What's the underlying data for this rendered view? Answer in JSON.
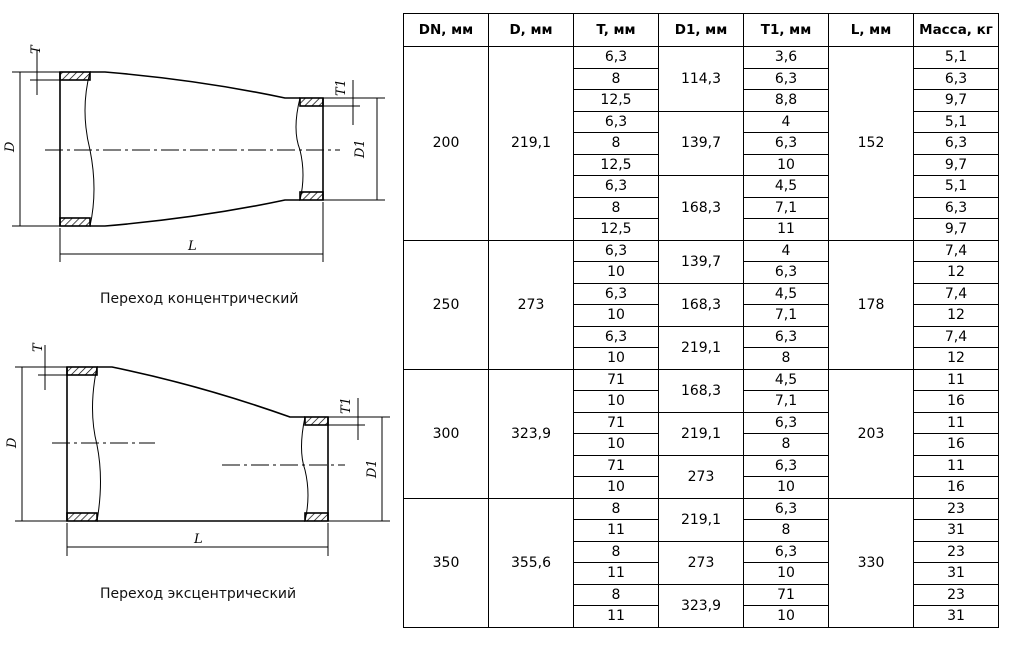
{
  "drawings": {
    "concentric": {
      "caption": "Переход концентрический",
      "labels": {
        "T": "T",
        "T1": "T1",
        "D": "D",
        "D1": "D1",
        "L": "L"
      }
    },
    "eccentric": {
      "caption": "Переход эксцентрический",
      "labels": {
        "T": "T",
        "T1": "T1",
        "D": "D",
        "D1": "D1",
        "L": "L"
      }
    }
  },
  "table": {
    "headers": [
      "DN, мм",
      "D, мм",
      "T, мм",
      "D1, мм",
      "T1, мм",
      "L, мм",
      "Масса, кг"
    ],
    "groups": [
      {
        "dn": "200",
        "d": "219,1",
        "l": "152",
        "subs": [
          {
            "d1": "114,3",
            "rows": [
              {
                "t": "6,3",
                "t1": "3,6",
                "mass": "5,1"
              },
              {
                "t": "8",
                "t1": "6,3",
                "mass": "6,3"
              },
              {
                "t": "12,5",
                "t1": "8,8",
                "mass": "9,7"
              }
            ]
          },
          {
            "d1": "139,7",
            "rows": [
              {
                "t": "6,3",
                "t1": "4",
                "mass": "5,1"
              },
              {
                "t": "8",
                "t1": "6,3",
                "mass": "6,3"
              },
              {
                "t": "12,5",
                "t1": "10",
                "mass": "9,7"
              }
            ]
          },
          {
            "d1": "168,3",
            "rows": [
              {
                "t": "6,3",
                "t1": "4,5",
                "mass": "5,1"
              },
              {
                "t": "8",
                "t1": "7,1",
                "mass": "6,3"
              },
              {
                "t": "12,5",
                "t1": "11",
                "mass": "9,7"
              }
            ]
          }
        ]
      },
      {
        "dn": "250",
        "d": "273",
        "l": "178",
        "subs": [
          {
            "d1": "139,7",
            "rows": [
              {
                "t": "6,3",
                "t1": "4",
                "mass": "7,4"
              },
              {
                "t": "10",
                "t1": "6,3",
                "mass": "12"
              }
            ]
          },
          {
            "d1": "168,3",
            "rows": [
              {
                "t": "6,3",
                "t1": "4,5",
                "mass": "7,4"
              },
              {
                "t": "10",
                "t1": "7,1",
                "mass": "12"
              }
            ]
          },
          {
            "d1": "219,1",
            "rows": [
              {
                "t": "6,3",
                "t1": "6,3",
                "mass": "7,4"
              },
              {
                "t": "10",
                "t1": "8",
                "mass": "12"
              }
            ]
          }
        ]
      },
      {
        "dn": "300",
        "d": "323,9",
        "l": "203",
        "subs": [
          {
            "d1": "168,3",
            "rows": [
              {
                "t": "71",
                "t1": "4,5",
                "mass": "11"
              },
              {
                "t": "10",
                "t1": "7,1",
                "mass": "16"
              }
            ]
          },
          {
            "d1": "219,1",
            "rows": [
              {
                "t": "71",
                "t1": "6,3",
                "mass": "11"
              },
              {
                "t": "10",
                "t1": "8",
                "mass": "16"
              }
            ]
          },
          {
            "d1": "273",
            "rows": [
              {
                "t": "71",
                "t1": "6,3",
                "mass": "11"
              },
              {
                "t": "10",
                "t1": "10",
                "mass": "16"
              }
            ]
          }
        ]
      },
      {
        "dn": "350",
        "d": "355,6",
        "l": "330",
        "subs": [
          {
            "d1": "219,1",
            "rows": [
              {
                "t": "8",
                "t1": "6,3",
                "mass": "23"
              },
              {
                "t": "11",
                "t1": "8",
                "mass": "31"
              }
            ]
          },
          {
            "d1": "273",
            "rows": [
              {
                "t": "8",
                "t1": "6,3",
                "mass": "23"
              },
              {
                "t": "11",
                "t1": "10",
                "mass": "31"
              }
            ]
          },
          {
            "d1": "323,9",
            "rows": [
              {
                "t": "8",
                "t1": "71",
                "mass": "23"
              },
              {
                "t": "11",
                "t1": "10",
                "mass": "31"
              }
            ]
          }
        ]
      }
    ]
  }
}
